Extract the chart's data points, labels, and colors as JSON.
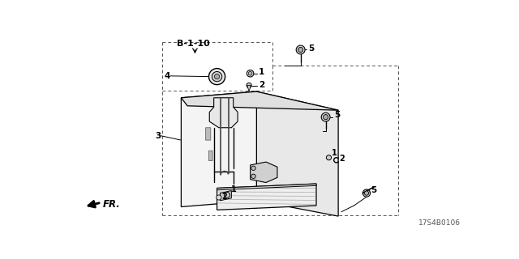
{
  "bg_color": "#ffffff",
  "line_color": "#000000",
  "diagram_label": "B-1-10",
  "part_number": "17S4B0106",
  "fr_label": "FR.",
  "body_color": "#f0f0f0",
  "body_edge": "#222222",
  "dash_color": "#555555",
  "gray_fill": "#d8d8d8",
  "dark_gray": "#888888"
}
